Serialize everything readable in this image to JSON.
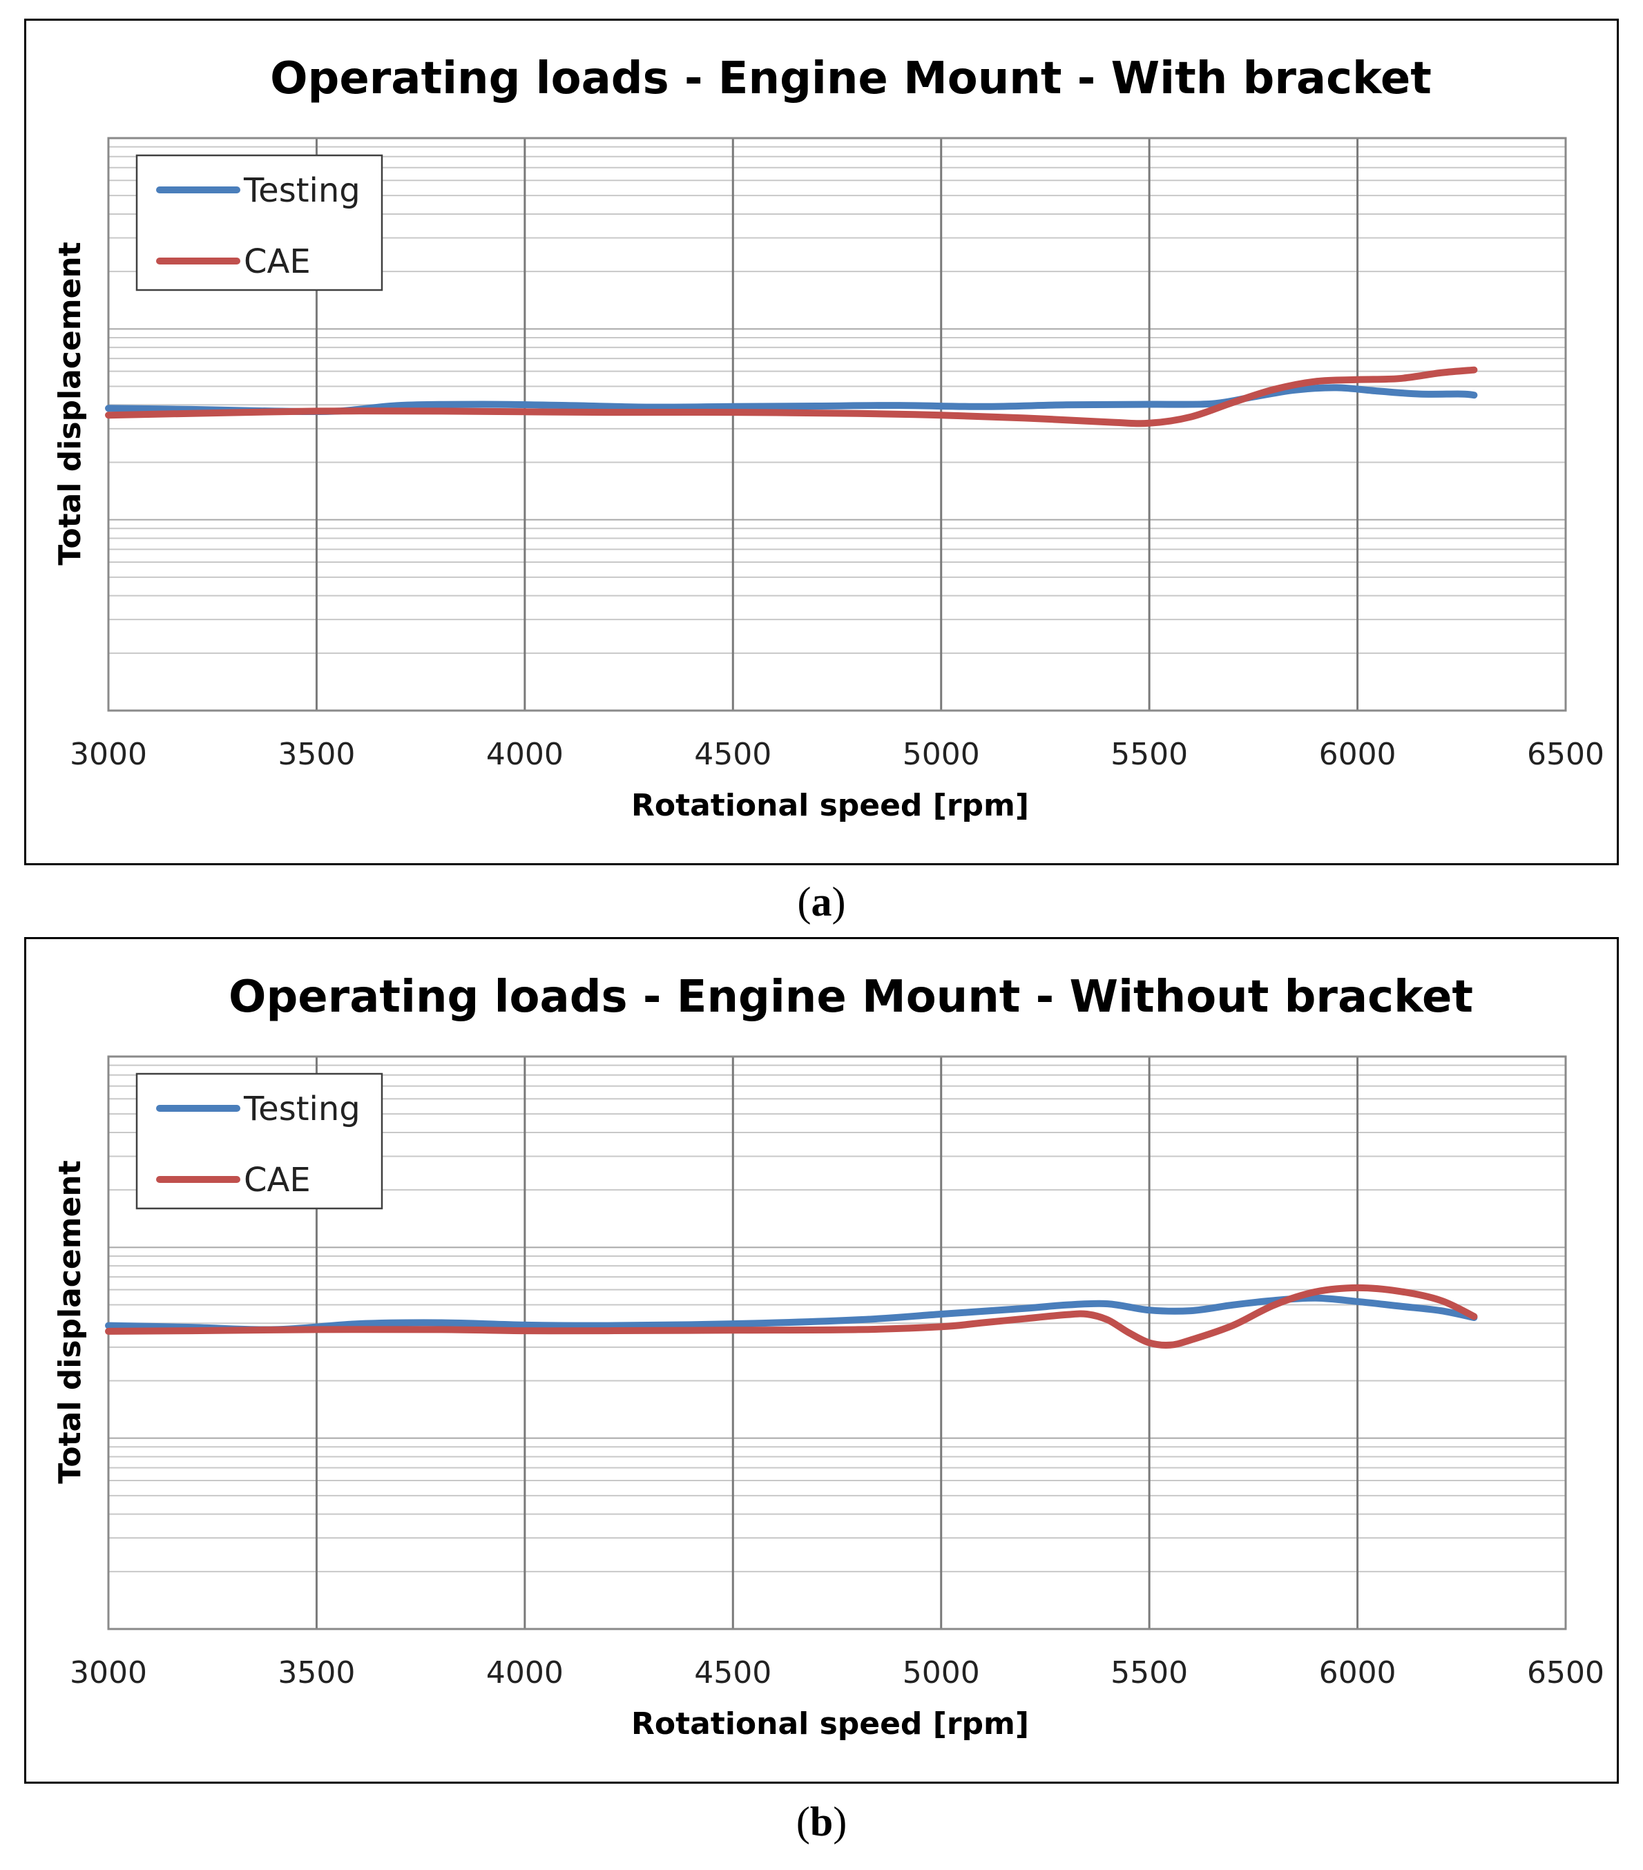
{
  "chart_data": [
    {
      "type": "line",
      "panel_label": "a",
      "title": "Operating loads - Engine Mount - With bracket",
      "xlabel": "Rotational speed [rpm]",
      "ylabel": "Total displacement",
      "xlim": [
        3000,
        6500
      ],
      "ylim": [
        0,
        1
      ],
      "x_ticks": [
        3000,
        3500,
        4000,
        4500,
        5000,
        5500,
        6000,
        6500
      ],
      "grid": true,
      "legend_position": "top-left",
      "series": [
        {
          "name": "Testing",
          "color": "#4a7ebb",
          "x": [
            3000,
            3200,
            3400,
            3550,
            3700,
            3900,
            4100,
            4300,
            4500,
            4700,
            4900,
            5100,
            5300,
            5500,
            5650,
            5750,
            5850,
            5950,
            6050,
            6150,
            6250,
            6280
          ],
          "y": [
            0.528,
            0.526,
            0.523,
            0.523,
            0.533,
            0.535,
            0.533,
            0.53,
            0.531,
            0.532,
            0.533,
            0.531,
            0.534,
            0.535,
            0.536,
            0.548,
            0.56,
            0.564,
            0.558,
            0.553,
            0.553,
            0.551
          ]
        },
        {
          "name": "CAE",
          "color": "#c0504d",
          "x": [
            3000,
            3200,
            3500,
            3800,
            4000,
            4200,
            4500,
            4800,
            5000,
            5200,
            5400,
            5500,
            5600,
            5700,
            5800,
            5900,
            6000,
            6100,
            6200,
            6280
          ],
          "y": [
            0.516,
            0.519,
            0.523,
            0.523,
            0.522,
            0.521,
            0.521,
            0.519,
            0.516,
            0.511,
            0.504,
            0.502,
            0.513,
            0.538,
            0.561,
            0.575,
            0.578,
            0.58,
            0.59,
            0.595
          ]
        }
      ]
    },
    {
      "type": "line",
      "panel_label": "b",
      "title": "Operating loads - Engine Mount - Without bracket",
      "xlabel": "Rotational speed [rpm]",
      "ylabel": "Total displacement",
      "xlim": [
        3000,
        6500
      ],
      "ylim": [
        0,
        1
      ],
      "x_ticks": [
        3000,
        3500,
        4000,
        4500,
        5000,
        5500,
        6000,
        6500
      ],
      "grid": true,
      "legend_position": "top-left",
      "series": [
        {
          "name": "Testing",
          "color": "#4a7ebb",
          "x": [
            3000,
            3200,
            3400,
            3600,
            3800,
            4000,
            4200,
            4500,
            4800,
            5000,
            5200,
            5300,
            5400,
            5500,
            5600,
            5700,
            5800,
            5900,
            6000,
            6100,
            6200,
            6280
          ],
          "y": [
            0.53,
            0.527,
            0.523,
            0.533,
            0.535,
            0.531,
            0.53,
            0.533,
            0.54,
            0.55,
            0.56,
            0.566,
            0.568,
            0.557,
            0.556,
            0.566,
            0.574,
            0.578,
            0.572,
            0.564,
            0.556,
            0.544
          ]
        },
        {
          "name": "CAE",
          "color": "#c0504d",
          "x": [
            3000,
            3200,
            3500,
            3800,
            4000,
            4200,
            4500,
            4800,
            5000,
            5100,
            5200,
            5300,
            5350,
            5400,
            5450,
            5500,
            5550,
            5600,
            5700,
            5800,
            5900,
            6000,
            6100,
            6200,
            6280
          ],
          "y": [
            0.52,
            0.521,
            0.523,
            0.523,
            0.521,
            0.521,
            0.522,
            0.523,
            0.528,
            0.535,
            0.542,
            0.549,
            0.55,
            0.54,
            0.518,
            0.5,
            0.496,
            0.505,
            0.53,
            0.566,
            0.589,
            0.596,
            0.59,
            0.574,
            0.546
          ]
        }
      ]
    }
  ]
}
